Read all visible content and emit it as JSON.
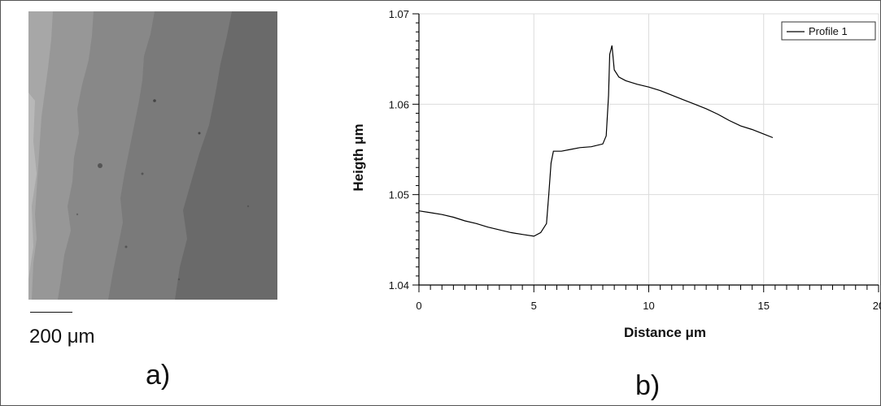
{
  "panel_a": {
    "scale_bar_label": "200 μm",
    "panel_label": "a)"
  },
  "panel_b": {
    "panel_label": "b)"
  },
  "chart_data": {
    "type": "line",
    "title": "",
    "xlabel": "Distance μm",
    "ylabel": "Heigth μm",
    "xlim": [
      0,
      20
    ],
    "ylim": [
      1.04,
      1.07
    ],
    "x_ticks": [
      "0",
      "5",
      "10",
      "15",
      "20"
    ],
    "y_ticks": [
      "1.04",
      "1.05",
      "1.06",
      "1.07"
    ],
    "grid": true,
    "legend_position": "top-right",
    "series": [
      {
        "name": "Profile 1",
        "color": "#000000",
        "x": [
          0.0,
          0.5,
          1.0,
          1.5,
          2.0,
          2.5,
          3.0,
          3.5,
          4.0,
          4.5,
          5.0,
          5.3,
          5.55,
          5.65,
          5.75,
          5.85,
          6.2,
          6.6,
          7.0,
          7.5,
          8.0,
          8.15,
          8.25,
          8.3,
          8.4,
          8.5,
          8.7,
          9.0,
          9.5,
          10.0,
          10.5,
          11.0,
          11.5,
          12.0,
          12.5,
          13.0,
          13.5,
          14.0,
          14.5,
          15.0,
          15.4
        ],
        "y": [
          1.0482,
          1.048,
          1.0478,
          1.0475,
          1.0471,
          1.0468,
          1.0464,
          1.0461,
          1.0458,
          1.0456,
          1.0454,
          1.0458,
          1.0468,
          1.05,
          1.0535,
          1.0548,
          1.0548,
          1.055,
          1.0552,
          1.0553,
          1.0556,
          1.0565,
          1.061,
          1.0655,
          1.0665,
          1.0638,
          1.063,
          1.0626,
          1.0622,
          1.0619,
          1.0615,
          1.061,
          1.0605,
          1.06,
          1.0595,
          1.0589,
          1.0582,
          1.0576,
          1.0572,
          1.0567,
          1.0563
        ]
      }
    ]
  }
}
